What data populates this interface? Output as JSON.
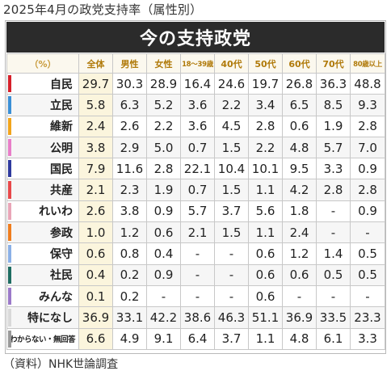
{
  "title": "2025年4月の政党支持率（属性別）",
  "banner": "今の支持政党",
  "source": "（資料）NHK世論調査",
  "columns": [
    "（%）",
    "全体",
    "男性",
    "女性",
    "18～39歳",
    "40代",
    "50代",
    "60代",
    "70代",
    "80歳以上"
  ],
  "rows": [
    {
      "party": "自民",
      "color": "#d6202a",
      "values": [
        "29.7",
        "30.3",
        "28.9",
        "16.4",
        "24.6",
        "19.7",
        "26.8",
        "36.3",
        "48.8"
      ]
    },
    {
      "party": "立民",
      "color": "#3a8fd6",
      "values": [
        "5.8",
        "6.3",
        "5.2",
        "3.6",
        "2.2",
        "3.4",
        "6.5",
        "8.5",
        "9.3"
      ]
    },
    {
      "party": "維新",
      "color": "#f2a51c",
      "values": [
        "2.4",
        "2.6",
        "2.2",
        "3.6",
        "4.5",
        "2.8",
        "0.6",
        "1.9",
        "2.8"
      ]
    },
    {
      "party": "公明",
      "color": "#e87ec8",
      "values": [
        "3.8",
        "2.9",
        "5.0",
        "0.7",
        "1.5",
        "2.2",
        "4.8",
        "5.7",
        "7.0"
      ]
    },
    {
      "party": "国民",
      "color": "#2f3a9e",
      "values": [
        "7.9",
        "11.6",
        "2.8",
        "22.1",
        "10.4",
        "10.1",
        "9.5",
        "3.3",
        "0.9"
      ]
    },
    {
      "party": "共産",
      "color": "#e8484a",
      "values": [
        "2.1",
        "2.3",
        "1.9",
        "0.7",
        "1.5",
        "1.1",
        "4.2",
        "2.8",
        "2.8"
      ]
    },
    {
      "party": "れいわ",
      "color": "#e9a6b8",
      "values": [
        "2.6",
        "3.8",
        "0.9",
        "5.7",
        "3.7",
        "5.6",
        "1.8",
        "-",
        "0.9"
      ]
    },
    {
      "party": "参政",
      "color": "#ef7d1e",
      "values": [
        "1.0",
        "1.2",
        "0.6",
        "2.1",
        "1.5",
        "1.1",
        "2.4",
        "-",
        "-"
      ]
    },
    {
      "party": "保守",
      "color": "#8ab0e6",
      "values": [
        "0.6",
        "0.8",
        "0.4",
        "-",
        "-",
        "0.6",
        "1.2",
        "1.4",
        "0.5"
      ]
    },
    {
      "party": "社民",
      "color": "#1e6d62",
      "values": [
        "0.4",
        "0.2",
        "0.9",
        "-",
        "-",
        "0.6",
        "0.6",
        "0.5",
        "0.5"
      ]
    },
    {
      "party": "みんな",
      "color": "#9b79c9",
      "values": [
        "0.1",
        "0.2",
        "-",
        "-",
        "-",
        "0.6",
        "-",
        "-",
        "-"
      ]
    },
    {
      "party": "特になし",
      "color": "#d9d9d9",
      "values": [
        "36.9",
        "33.1",
        "42.2",
        "38.6",
        "46.3",
        "51.1",
        "36.9",
        "33.5",
        "23.3"
      ]
    },
    {
      "party": "わからない・無回答",
      "color": "#9a9a9a",
      "values": [
        "6.6",
        "4.9",
        "9.1",
        "6.4",
        "3.7",
        "1.1",
        "4.8",
        "6.1",
        "3.3"
      ]
    }
  ]
}
